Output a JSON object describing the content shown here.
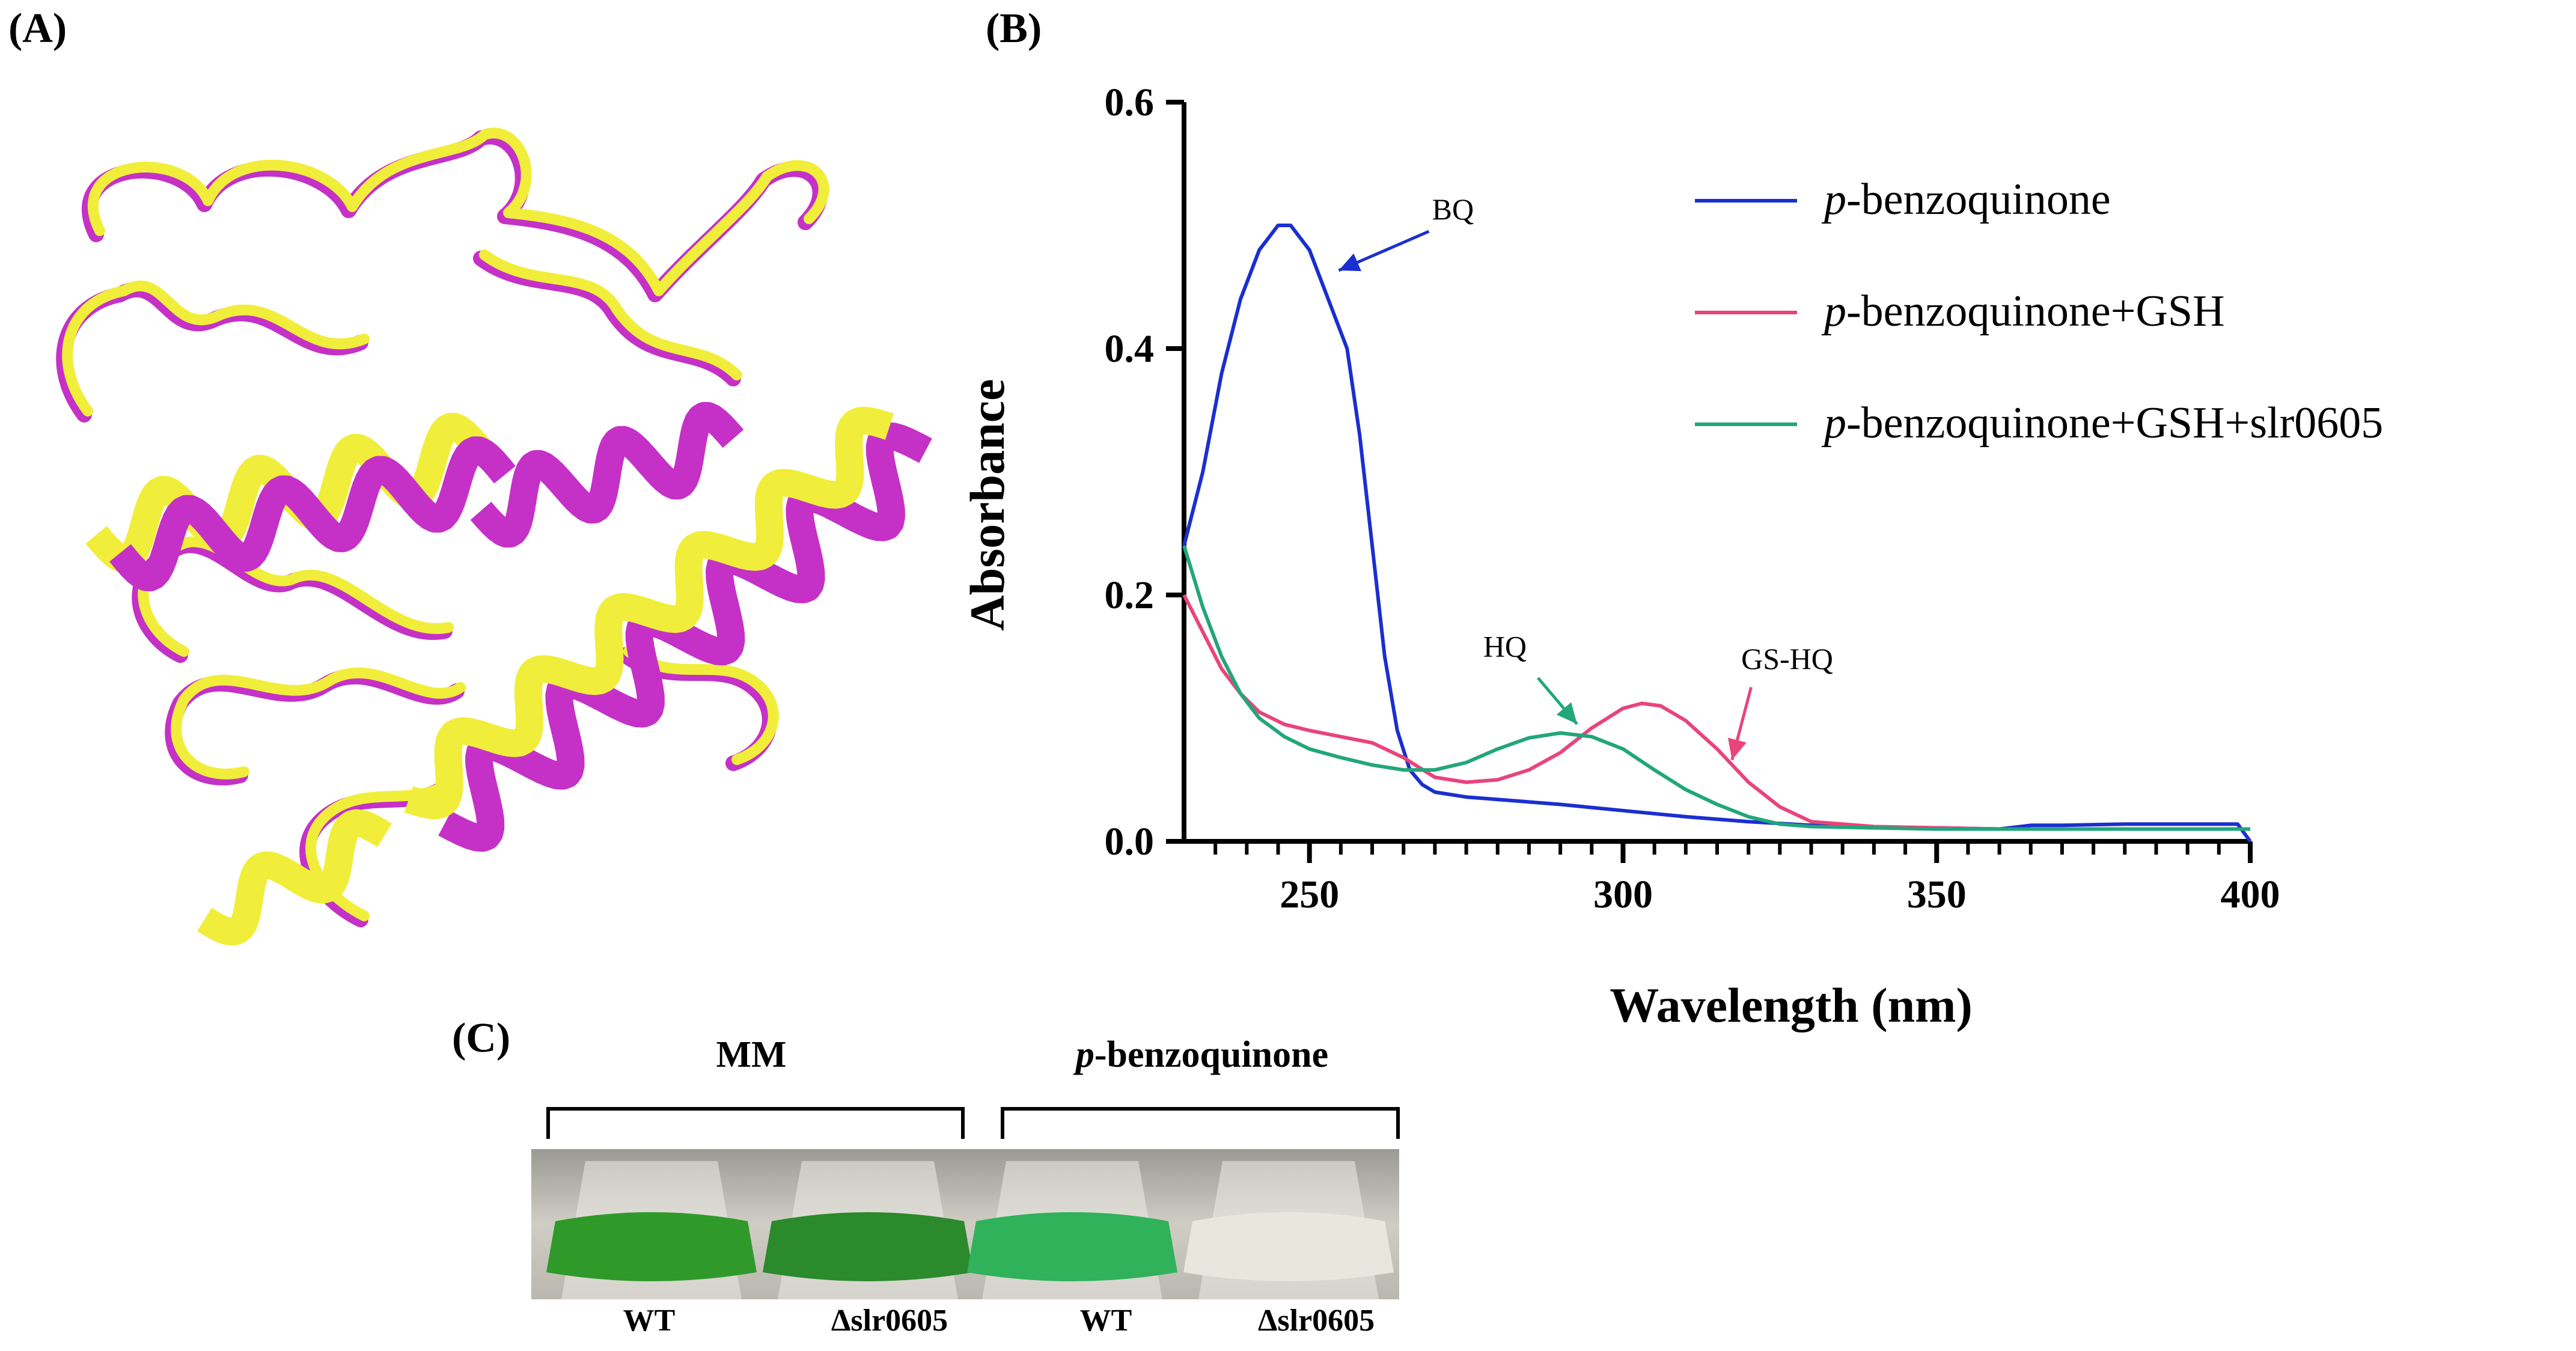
{
  "panels": {
    "a_label": "(A)",
    "b_label": "(B)",
    "c_label": "(C)"
  },
  "structure": {
    "colors": {
      "ribbon_1": "#f0ee3a",
      "ribbon_2": "#c531c7"
    }
  },
  "chart_data": {
    "type": "line",
    "xlabel": "Wavelength (nm)",
    "ylabel": "Absorbance",
    "xlim": [
      230,
      400
    ],
    "ylim": [
      0,
      0.6
    ],
    "xticks": [
      250,
      300,
      350,
      400
    ],
    "yticks": [
      0.0,
      0.2,
      0.4,
      0.6
    ],
    "ytick_labels": [
      "0.0",
      "0.2",
      "0.4",
      "0.6"
    ],
    "legend_position": "top-right",
    "series": [
      {
        "name_italic": "p",
        "name_rest": "-benzoquinone",
        "color": "#1a2fd0",
        "x": [
          230,
          233,
          236,
          239,
          242,
          245,
          247,
          250,
          253,
          256,
          258,
          260,
          262,
          264,
          266,
          268,
          270,
          275,
          280,
          290,
          300,
          310,
          320,
          330,
          340,
          350,
          360,
          365,
          370,
          380,
          390,
          398,
          400
        ],
        "y": [
          0.24,
          0.3,
          0.38,
          0.44,
          0.48,
          0.5,
          0.5,
          0.48,
          0.44,
          0.4,
          0.33,
          0.24,
          0.15,
          0.09,
          0.058,
          0.046,
          0.04,
          0.036,
          0.034,
          0.03,
          0.025,
          0.02,
          0.016,
          0.013,
          0.011,
          0.011,
          0.01,
          0.013,
          0.013,
          0.014,
          0.014,
          0.014,
          0.0
        ]
      },
      {
        "name_italic": "p",
        "name_rest": "-benzoquinone+GSH",
        "color": "#e8457a",
        "x": [
          230,
          233,
          236,
          239,
          242,
          246,
          250,
          255,
          260,
          265,
          270,
          275,
          280,
          285,
          290,
          295,
          300,
          303,
          306,
          310,
          315,
          320,
          325,
          330,
          340,
          350,
          360,
          370,
          380,
          390,
          400
        ],
        "y": [
          0.2,
          0.17,
          0.14,
          0.12,
          0.105,
          0.095,
          0.09,
          0.085,
          0.08,
          0.068,
          0.052,
          0.048,
          0.05,
          0.058,
          0.072,
          0.092,
          0.108,
          0.112,
          0.11,
          0.098,
          0.075,
          0.048,
          0.028,
          0.016,
          0.012,
          0.011,
          0.01,
          0.01,
          0.01,
          0.01,
          0.01
        ]
      },
      {
        "name_italic": "p",
        "name_rest": "-benzoquinone+GSH+slr0605",
        "color": "#22a67c",
        "x": [
          230,
          233,
          236,
          239,
          242,
          246,
          250,
          255,
          260,
          265,
          270,
          275,
          280,
          285,
          290,
          295,
          300,
          305,
          310,
          315,
          320,
          325,
          330,
          340,
          350,
          360,
          370,
          380,
          390,
          400
        ],
        "y": [
          0.24,
          0.19,
          0.15,
          0.12,
          0.1,
          0.085,
          0.075,
          0.068,
          0.062,
          0.058,
          0.058,
          0.064,
          0.075,
          0.084,
          0.088,
          0.085,
          0.075,
          0.058,
          0.042,
          0.03,
          0.02,
          0.014,
          0.012,
          0.011,
          0.01,
          0.01,
          0.01,
          0.01,
          0.01,
          0.01
        ]
      }
    ],
    "annotations": [
      {
        "text": "BQ",
        "color": "#1a2fd0"
      },
      {
        "text": "HQ",
        "color": "#22a67c"
      },
      {
        "text": "GS-HQ",
        "color": "#e8457a"
      }
    ]
  },
  "panel_c": {
    "groups": [
      {
        "italic": "",
        "label": "MM"
      },
      {
        "italic": "p",
        "label": "-benzoquinone"
      }
    ],
    "flask_labels": [
      "WT",
      "Δslr0605",
      "WT",
      "Δslr0605"
    ],
    "culture_colors": [
      "#2f9a2a",
      "#2b8a2b",
      "#2fb25a",
      "#e9e6de"
    ]
  }
}
